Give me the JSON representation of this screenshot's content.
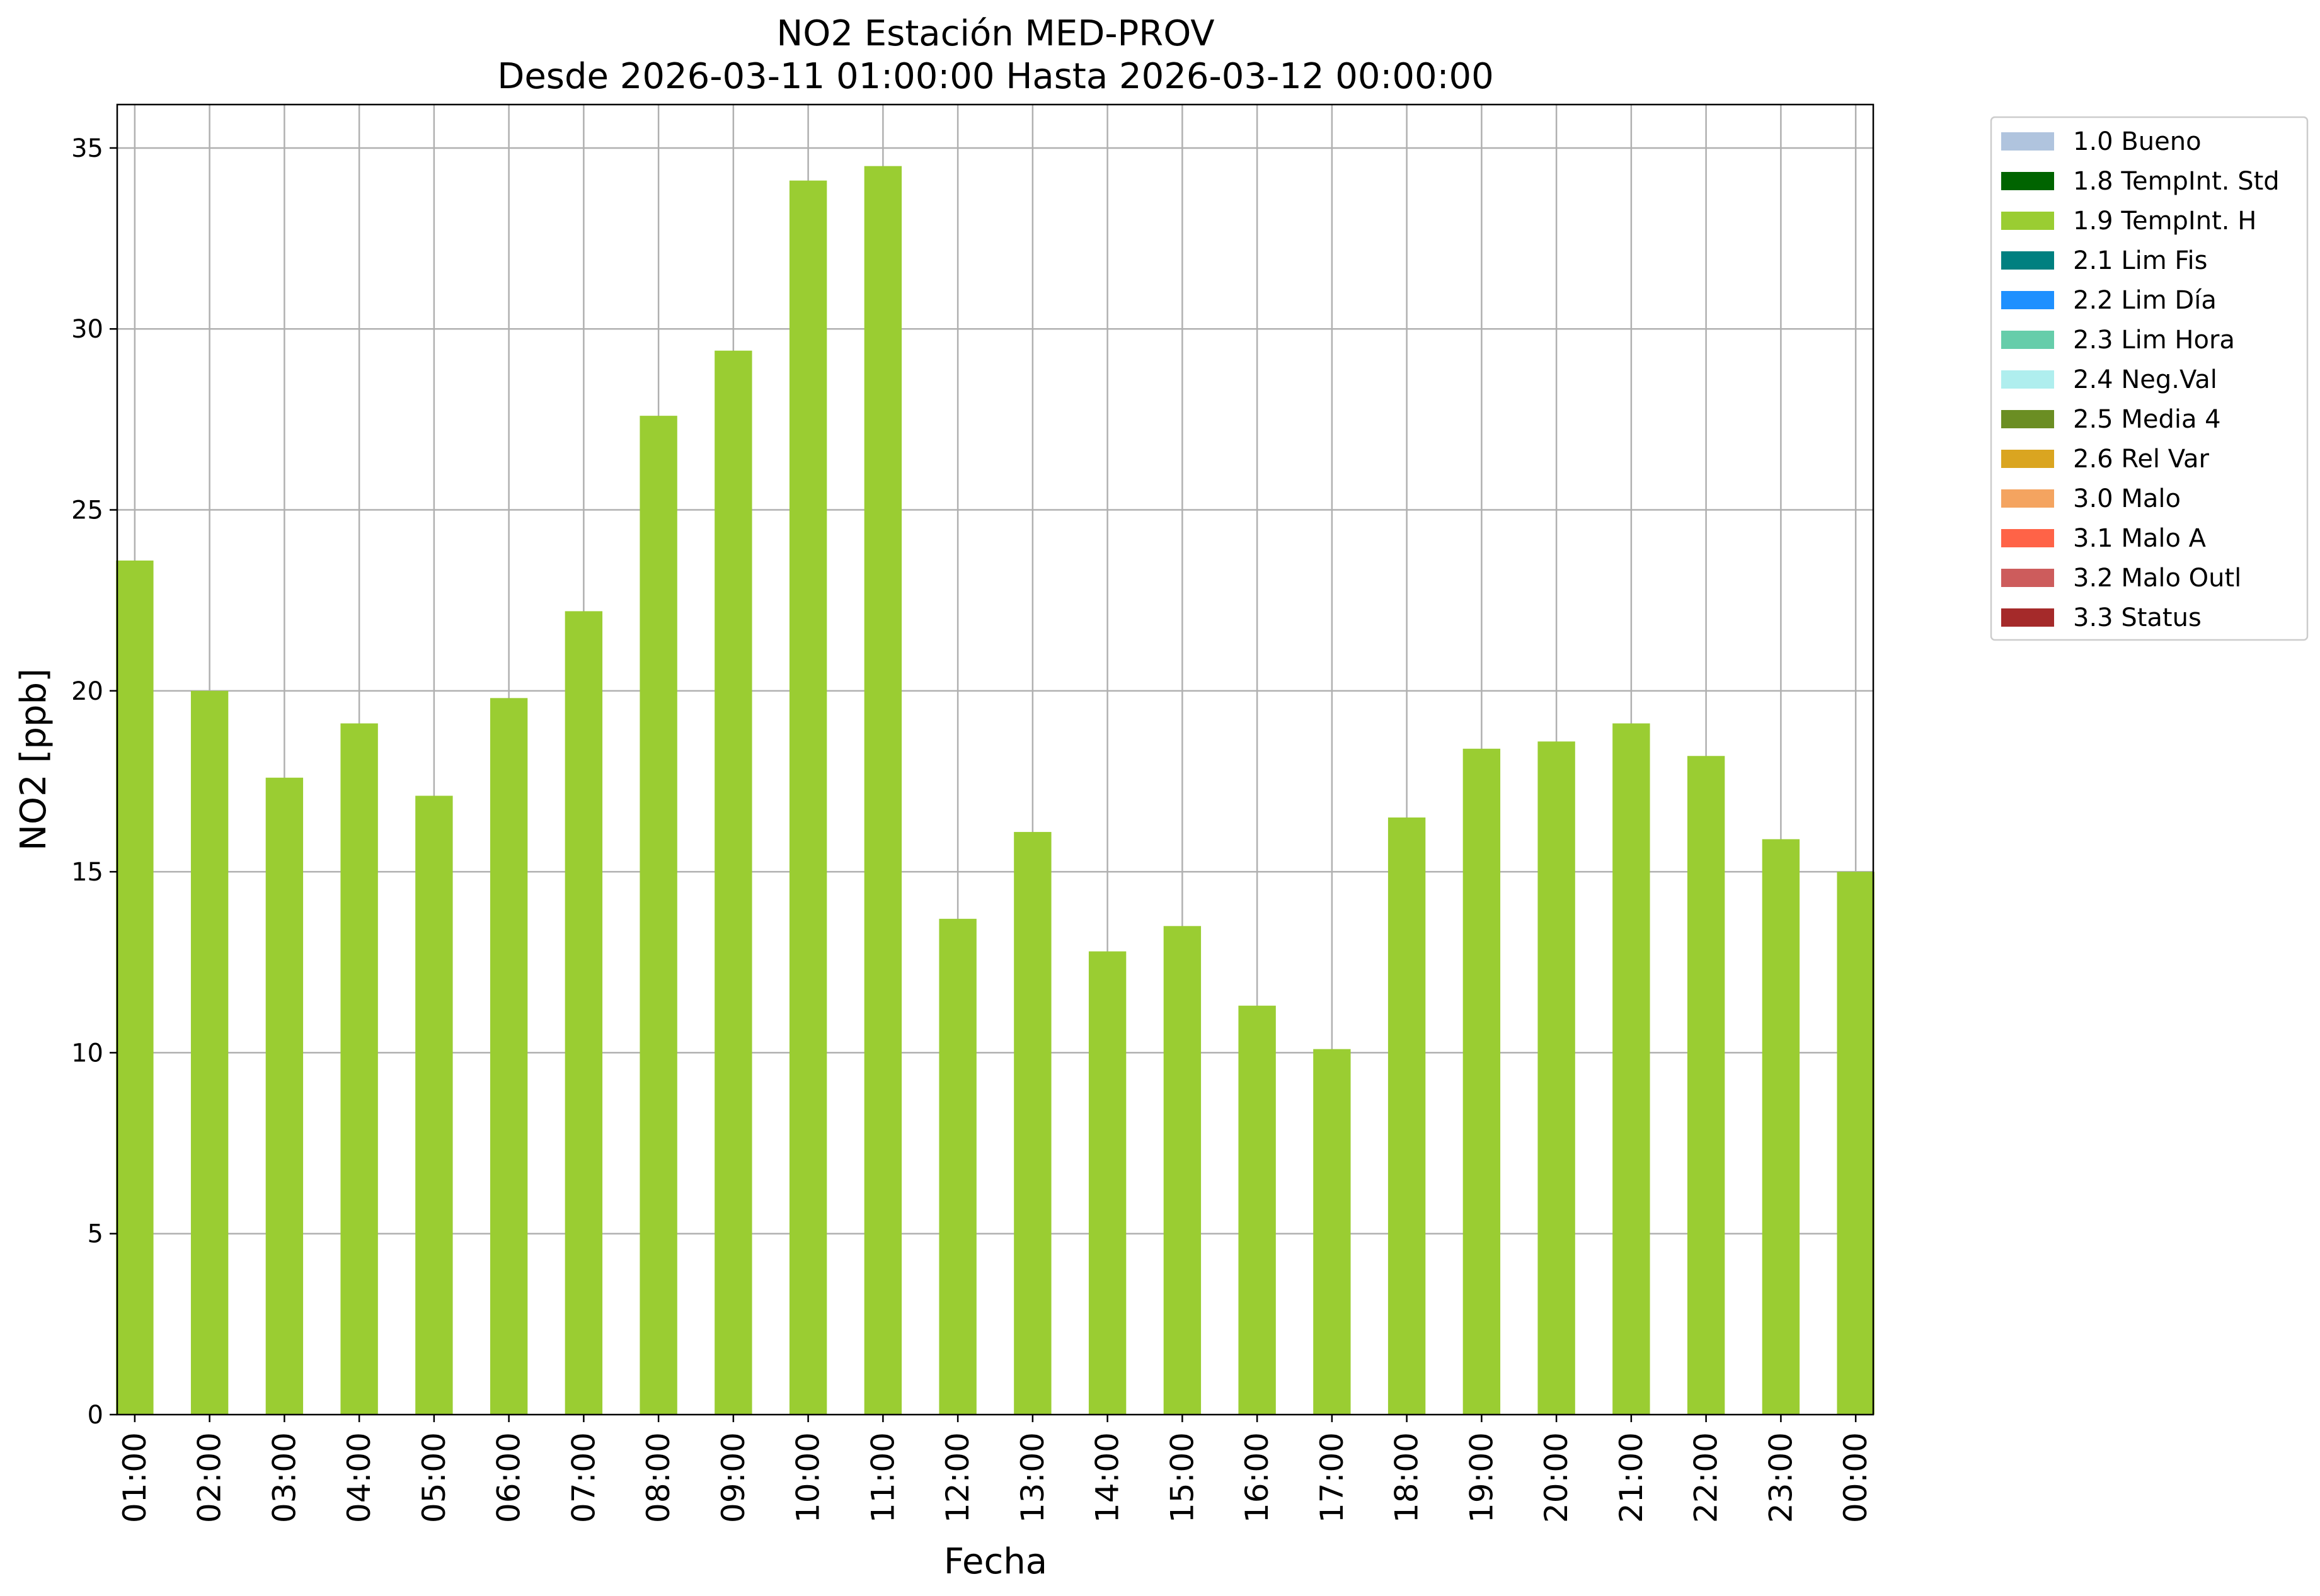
{
  "chart_data": {
    "type": "bar",
    "title": "NO2 Estación MED-PROV",
    "subtitle": "Desde 2026-03-11 01:00:00 Hasta 2026-03-12 00:00:00",
    "xlabel": "Fecha",
    "ylabel": "NO2 [ppb]",
    "ylim": [
      0,
      36.2
    ],
    "yticks": [
      0,
      5,
      10,
      15,
      20,
      25,
      30,
      35
    ],
    "grid": true,
    "legend_position": "outside-top-right",
    "categories": [
      "01:00",
      "02:00",
      "03:00",
      "04:00",
      "05:00",
      "06:00",
      "07:00",
      "08:00",
      "09:00",
      "10:00",
      "11:00",
      "12:00",
      "13:00",
      "14:00",
      "15:00",
      "16:00",
      "17:00",
      "18:00",
      "19:00",
      "20:00",
      "21:00",
      "22:00",
      "23:00",
      "00:00"
    ],
    "series": [
      {
        "name": "1.9 TempInt. H",
        "color": "#9acd32",
        "values": [
          23.6,
          20.0,
          17.6,
          19.1,
          17.1,
          19.8,
          22.2,
          27.6,
          29.4,
          34.1,
          34.5,
          13.7,
          16.1,
          12.8,
          13.5,
          11.3,
          10.1,
          16.5,
          18.4,
          18.6,
          19.1,
          18.2,
          15.9,
          15.0
        ]
      }
    ],
    "legend": [
      {
        "label": "1.0 Bueno",
        "color": "#b0c4de"
      },
      {
        "label": "1.8 TempInt. Std",
        "color": "#006400"
      },
      {
        "label": "1.9 TempInt. H",
        "color": "#9acd32"
      },
      {
        "label": "2.1 Lim Fis",
        "color": "#008080"
      },
      {
        "label": "2.2 Lim Día",
        "color": "#1e90ff"
      },
      {
        "label": "2.3 Lim Hora",
        "color": "#66cdaa"
      },
      {
        "label": "2.4 Neg.Val",
        "color": "#afeeee"
      },
      {
        "label": "2.5 Media 4",
        "color": "#6b8e23"
      },
      {
        "label": "2.6 Rel Var",
        "color": "#daa520"
      },
      {
        "label": "3.0 Malo",
        "color": "#f4a460"
      },
      {
        "label": "3.1 Malo A",
        "color": "#ff6347"
      },
      {
        "label": "3.2 Malo Outl",
        "color": "#cd5c5c"
      },
      {
        "label": "3.3 Status",
        "color": "#a52a2a"
      }
    ]
  }
}
